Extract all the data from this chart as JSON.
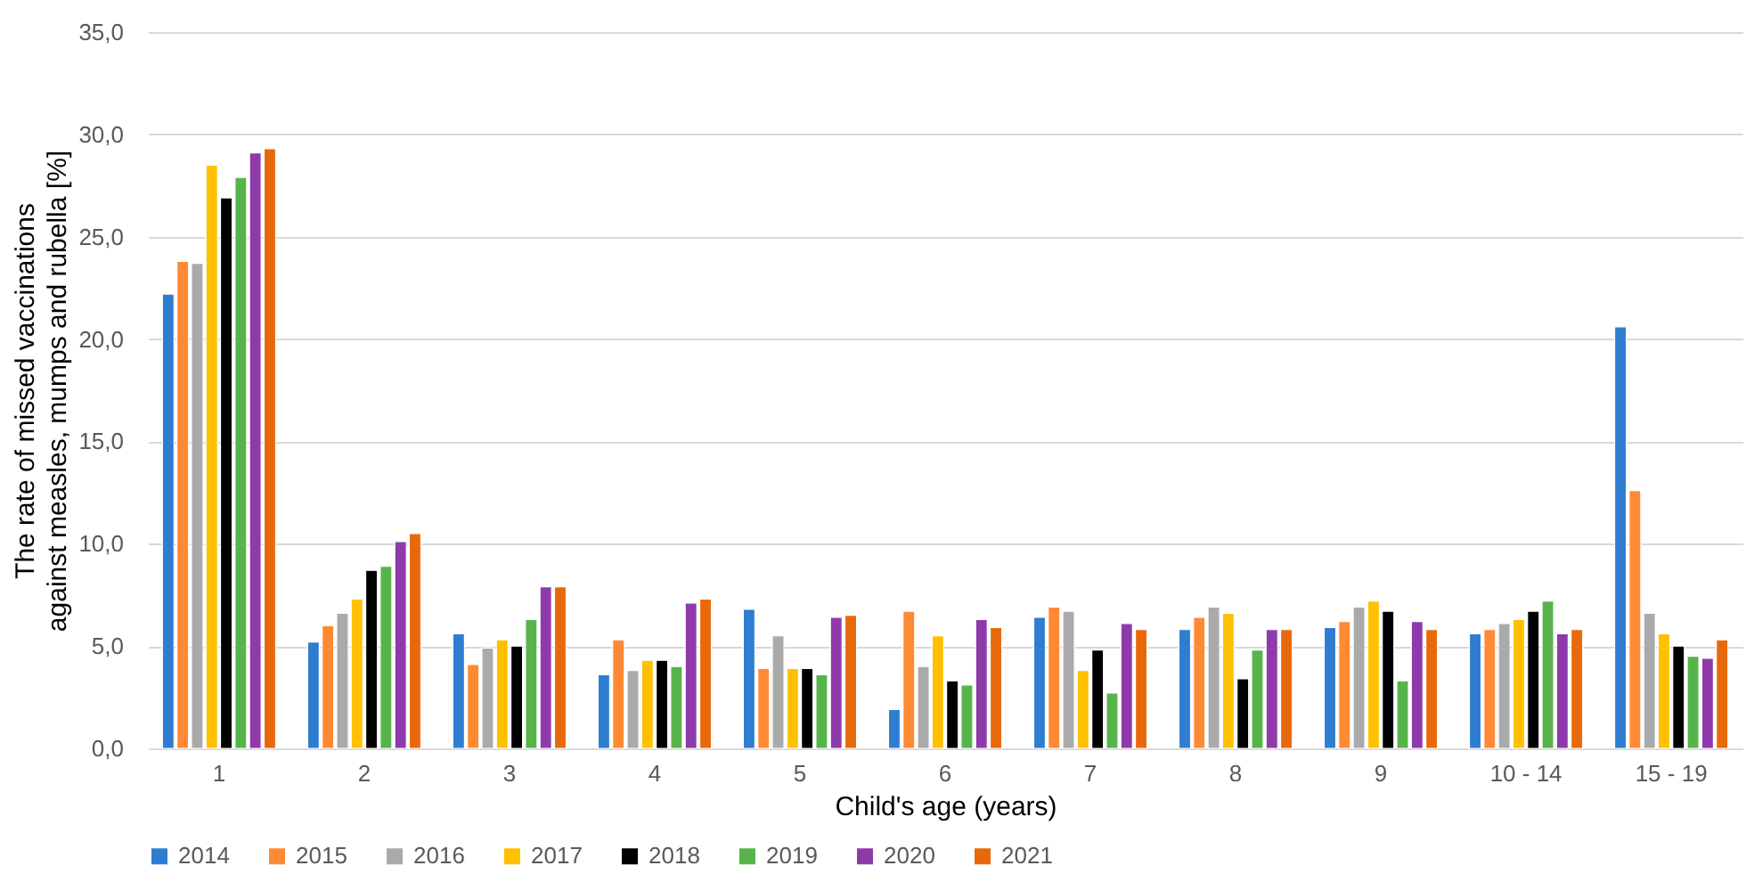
{
  "chart_data": {
    "type": "bar",
    "xlabel": "Child's age (years)",
    "ylabel": "The rate of missed vaccinations against measles, mumps and rubella [%]",
    "categories": [
      "1",
      "2",
      "3",
      "4",
      "5",
      "6",
      "7",
      "8",
      "9",
      "10 - 14",
      "15 - 19"
    ],
    "series": [
      {
        "name": "2014",
        "color": "#2e7dd0",
        "values": [
          22.2,
          5.2,
          5.6,
          3.6,
          6.8,
          1.9,
          6.4,
          5.8,
          5.9,
          5.6,
          20.6
        ]
      },
      {
        "name": "2015",
        "color": "#ff8a33",
        "values": [
          23.8,
          6.0,
          4.1,
          5.3,
          3.9,
          6.7,
          6.9,
          6.4,
          6.2,
          5.8,
          12.6
        ]
      },
      {
        "name": "2016",
        "color": "#aaaaaa",
        "values": [
          23.7,
          6.6,
          4.9,
          3.8,
          5.5,
          4.0,
          6.7,
          6.9,
          6.9,
          6.1,
          6.6
        ]
      },
      {
        "name": "2017",
        "color": "#ffc000",
        "values": [
          28.5,
          7.3,
          5.3,
          4.3,
          3.9,
          5.5,
          3.8,
          6.6,
          7.2,
          6.3,
          5.6
        ]
      },
      {
        "name": "2018",
        "color": "#000000",
        "values": [
          26.9,
          8.7,
          5.0,
          4.3,
          3.9,
          3.3,
          4.8,
          3.4,
          6.7,
          6.7,
          5.0
        ]
      },
      {
        "name": "2019",
        "color": "#57b44b",
        "values": [
          27.9,
          8.9,
          6.3,
          4.0,
          3.6,
          3.1,
          2.7,
          4.8,
          3.3,
          7.2,
          4.5
        ]
      },
      {
        "name": "2020",
        "color": "#8e3aab",
        "values": [
          29.1,
          10.1,
          7.9,
          7.1,
          6.4,
          6.3,
          6.1,
          5.8,
          6.2,
          5.6,
          4.4
        ]
      },
      {
        "name": "2021",
        "color": "#e8690a",
        "values": [
          29.3,
          10.5,
          7.9,
          7.3,
          6.5,
          5.9,
          5.8,
          5.8,
          5.8,
          5.8,
          5.3
        ]
      }
    ],
    "ylim": [
      0,
      35
    ],
    "yticks": [
      {
        "value": 0,
        "label": "0,0"
      },
      {
        "value": 5,
        "label": "5,0"
      },
      {
        "value": 10,
        "label": "10,0"
      },
      {
        "value": 15,
        "label": "15,0"
      },
      {
        "value": 20,
        "label": "20,0"
      },
      {
        "value": 25,
        "label": "25,0"
      },
      {
        "value": 30,
        "label": "30,0"
      },
      {
        "value": 35,
        "label": "35,0"
      }
    ],
    "grid": "y",
    "legend": "bottom"
  }
}
